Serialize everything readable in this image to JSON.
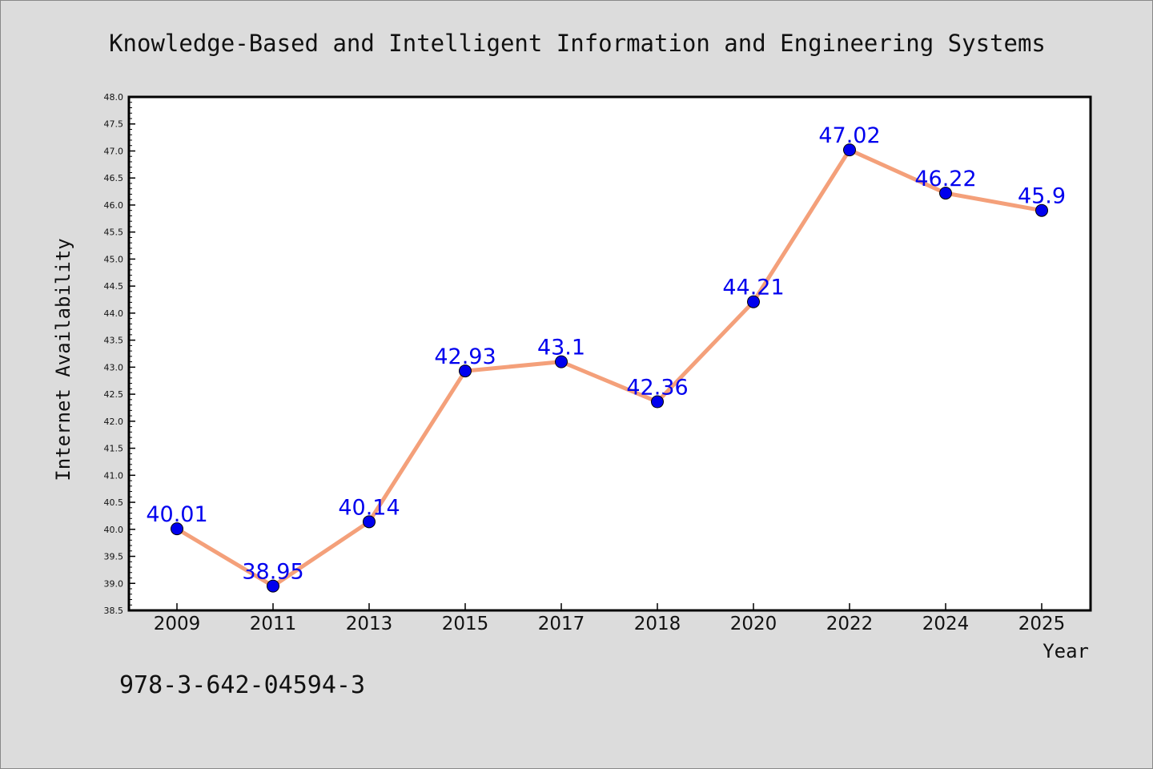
{
  "title": "Knowledge-Based and Intelligent Information and Engineering Systems",
  "footer_text": "978-3-642-04594-3",
  "colors": {
    "background": "#dcdcdc",
    "plot_background": "#ffffff",
    "line": "#f4a07a",
    "marker": "#0000ee",
    "data_label": "#0000ee",
    "text": "#111111"
  },
  "chart_data": {
    "type": "line",
    "title": "Knowledge-Based and Intelligent Information and Engineering Systems",
    "xlabel": "Year",
    "ylabel": "Internet Availability",
    "categories": [
      "2009",
      "2011",
      "2013",
      "2015",
      "2017",
      "2018",
      "2020",
      "2022",
      "2024",
      "2025"
    ],
    "values": [
      40.01,
      38.95,
      40.14,
      42.93,
      43.1,
      42.36,
      44.21,
      47.02,
      46.22,
      45.9
    ],
    "data_labels": [
      "40.01",
      "38.95",
      "40.14",
      "42.93",
      "43.1",
      "42.36",
      "44.21",
      "47.02",
      "46.22",
      "45.9"
    ],
    "ylim": [
      38.5,
      48.0
    ],
    "yticks": [
      "38.5",
      "39.0",
      "39.5",
      "40.0",
      "40.5",
      "41.0",
      "41.5",
      "42.0",
      "42.5",
      "43.0",
      "43.5",
      "44.0",
      "44.5",
      "45.0",
      "45.5",
      "46.0",
      "46.5",
      "47.0",
      "47.5",
      "48.0"
    ],
    "grid": false,
    "legend": "none"
  }
}
